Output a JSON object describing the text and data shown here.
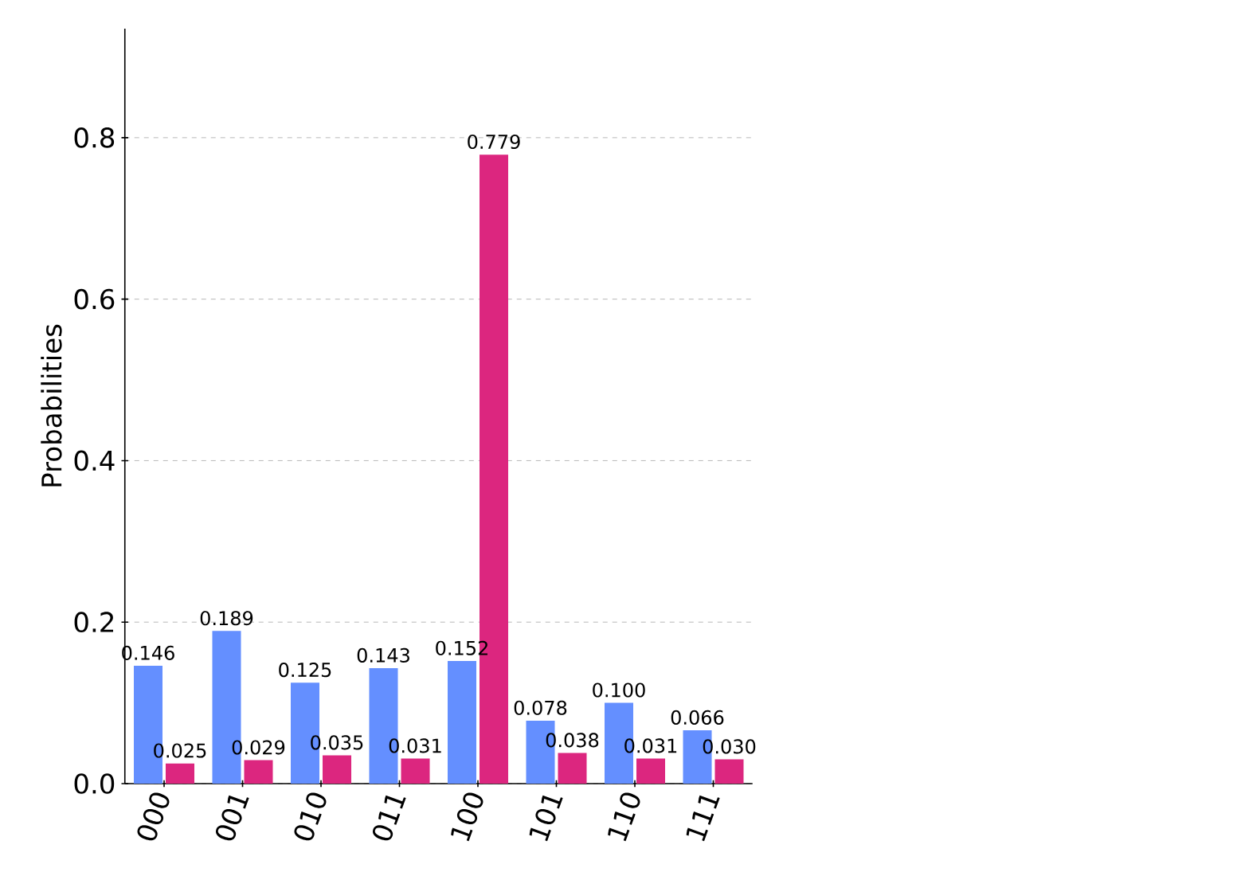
{
  "chart_data": {
    "type": "bar",
    "ylabel": "Probabilities",
    "categories": [
      "000",
      "001",
      "010",
      "011",
      "100",
      "101",
      "110",
      "111"
    ],
    "series": [
      {
        "color": "#648fff",
        "values": [
          0.146,
          0.189,
          0.125,
          0.143,
          0.152,
          0.078,
          0.1,
          0.066
        ],
        "value_labels": [
          "0.146",
          "0.189",
          "0.125",
          "0.143",
          "0.152",
          "0.078",
          "0.100",
          "0.066"
        ]
      },
      {
        "color": "#dc267f",
        "values": [
          0.025,
          0.029,
          0.035,
          0.031,
          0.779,
          0.038,
          0.031,
          0.03
        ],
        "value_labels": [
          "0.025",
          "0.029",
          "0.035",
          "0.031",
          "0.779",
          "0.038",
          "0.031",
          "0.030"
        ]
      }
    ],
    "ylim": [
      0,
      0.935
    ],
    "yticks": [
      {
        "value": 0,
        "label": "0.0"
      },
      {
        "value": 0.2,
        "label": "0.2"
      },
      {
        "value": 0.4,
        "label": "0.4"
      },
      {
        "value": 0.6,
        "label": "0.6"
      },
      {
        "value": 0.8,
        "label": "0.8"
      }
    ],
    "grid": "y",
    "line_style": "dashed"
  }
}
